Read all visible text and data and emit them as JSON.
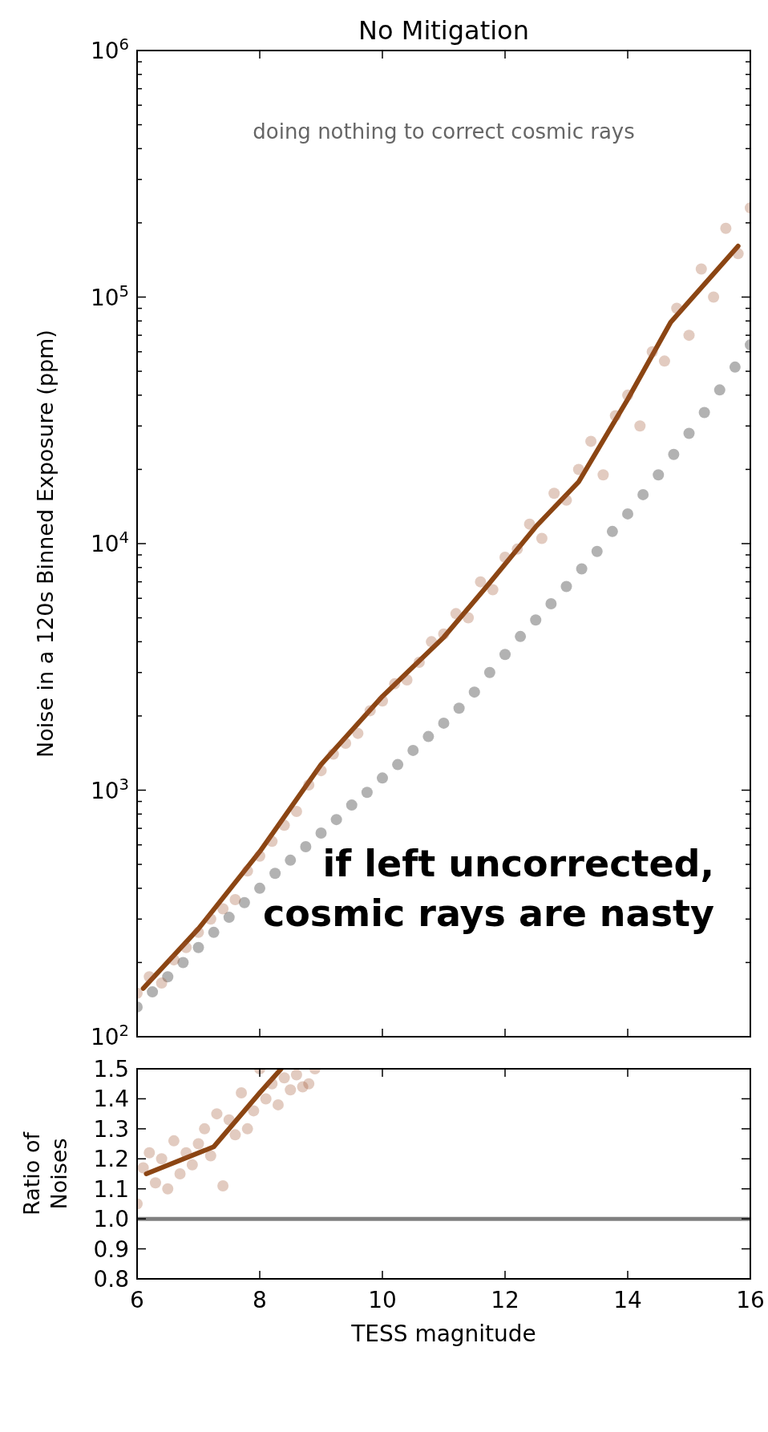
{
  "chart_data": [
    {
      "type": "scatter",
      "title": "No Mitigation",
      "ylabel": "Noise in a 120s Binned Exposure (ppm)",
      "log": true,
      "tick_labels": "y",
      "xlim": [
        6,
        16
      ],
      "xticks": [
        6,
        8,
        10,
        12,
        14,
        16
      ],
      "ylim": [
        100,
        1000000
      ],
      "yticks": [
        {
          "value": 100,
          "label": "10$^{2}$"
        },
        {
          "value": 200,
          "label": null
        },
        {
          "value": 300,
          "label": null
        },
        {
          "value": 400,
          "label": null
        },
        {
          "value": 500,
          "label": null
        },
        {
          "value": 600,
          "label": null
        },
        {
          "value": 700,
          "label": null
        },
        {
          "value": 800,
          "label": null
        },
        {
          "value": 900,
          "label": null
        },
        {
          "value": 1000,
          "label": "10$^{3}$"
        },
        {
          "value": 2000,
          "label": null
        },
        {
          "value": 3000,
          "label": null
        },
        {
          "value": 4000,
          "label": null
        },
        {
          "value": 5000,
          "label": null
        },
        {
          "value": 6000,
          "label": null
        },
        {
          "value": 7000,
          "label": null
        },
        {
          "value": 8000,
          "label": null
        },
        {
          "value": 9000,
          "label": null
        },
        {
          "value": 10000,
          "label": "10$^{4}$"
        },
        {
          "value": 20000,
          "label": null
        },
        {
          "value": 30000,
          "label": null
        },
        {
          "value": 40000,
          "label": null
        },
        {
          "value": 50000,
          "label": null
        },
        {
          "value": 60000,
          "label": null
        },
        {
          "value": 70000,
          "label": null
        },
        {
          "value": 80000,
          "label": null
        },
        {
          "value": 90000,
          "label": null
        },
        {
          "value": 100000,
          "label": "10$^{5}$"
        },
        {
          "value": 200000,
          "label": null
        },
        {
          "value": 300000,
          "label": null
        },
        {
          "value": 400000,
          "label": null
        },
        {
          "value": 500000,
          "label": null
        },
        {
          "value": 600000,
          "label": null
        },
        {
          "value": 700000,
          "label": null
        },
        {
          "value": 800000,
          "label": null
        },
        {
          "value": 900000,
          "label": null
        },
        {
          "value": 1000000,
          "label": "10$^{6}$"
        }
      ],
      "annotations": [
        "doing nothing to correct cosmic rays",
        "if left uncorrected,\ncosmic rays are nasty"
      ],
      "series": [
        {
          "color": "#000000",
          "x": [
            6,
            6.25,
            6.5,
            6.75,
            7,
            7.25,
            7.5,
            7.75,
            8,
            8.25,
            8.5,
            8.75,
            9,
            9.25,
            9.5,
            9.75,
            10,
            10.25,
            10.5,
            10.75,
            11,
            11.25,
            11.5,
            11.75,
            12,
            12.25,
            12.5,
            12.75,
            13,
            13.25,
            13.5,
            13.75,
            14,
            14.25,
            14.5,
            14.75,
            15,
            15.25,
            15.5,
            15.75,
            16
          ],
          "values": [
            132,
            152,
            175,
            200,
            230,
            265,
            305,
            350,
            400,
            460,
            520,
            590,
            670,
            760,
            870,
            980,
            1120,
            1270,
            1450,
            1650,
            1870,
            2150,
            2500,
            3000,
            3550,
            4200,
            4900,
            5700,
            6700,
            7900,
            9300,
            11200,
            13200,
            15800,
            19000,
            23000,
            28000,
            34000,
            42000,
            52000,
            64000
          ]
        },
        {
          "color": "#a0522d",
          "x": [
            6,
            6.2,
            6.4,
            6.6,
            6.8,
            7,
            7.2,
            7.4,
            7.6,
            7.8,
            8,
            8.2,
            8.4,
            8.6,
            8.8,
            9,
            9.2,
            9.4,
            9.6,
            9.8,
            10,
            10.2,
            10.4,
            10.6,
            10.8,
            11,
            11.2,
            11.4,
            11.6,
            11.8,
            12,
            12.2,
            12.4,
            12.6,
            12.8,
            13,
            13.2,
            13.4,
            13.6,
            13.8,
            14,
            14.2,
            14.4,
            14.6,
            14.8,
            15,
            15.2,
            15.4,
            15.6,
            15.8,
            16
          ],
          "values": [
            150,
            175,
            165,
            205,
            230,
            265,
            300,
            330,
            360,
            470,
            540,
            620,
            720,
            820,
            1050,
            1200,
            1400,
            1550,
            1700,
            2100,
            2300,
            2700,
            2800,
            3300,
            4000,
            4300,
            5200,
            5000,
            7000,
            6500,
            8800,
            9500,
            12000,
            10500,
            16000,
            15000,
            20000,
            26000,
            19000,
            33000,
            40000,
            30000,
            60000,
            55000,
            90000,
            70000,
            130000,
            100000,
            190000,
            150000,
            230000
          ]
        },
        {
          "type": "line",
          "color": "#8b4513",
          "x": [
            6.1,
            7,
            8,
            9,
            10,
            11,
            11.7,
            12.5,
            13.2,
            14,
            14.7,
            15.8
          ],
          "values": [
            157,
            274,
            563,
            1270,
            2400,
            4170,
            6700,
            11700,
            17800,
            38500,
            79000,
            161000
          ]
        }
      ]
    },
    {
      "type": "scatter",
      "ylabel": "Ratio of\nNoises",
      "xlabel": "TESS magnitude",
      "xlim": [
        6,
        16
      ],
      "xticks": [
        6,
        8,
        10,
        12,
        14,
        16
      ],
      "ylim": [
        0.8,
        1.5
      ],
      "yticks": [
        {
          "value": 0.8,
          "label": "0.8"
        },
        {
          "value": 0.9,
          "label": "0.9"
        },
        {
          "value": 1,
          "label": "1.0"
        },
        {
          "value": 1.1,
          "label": "1.1"
        },
        {
          "value": 1.2,
          "label": "1.2"
        },
        {
          "value": 1.3,
          "label": "1.3"
        },
        {
          "value": 1.4,
          "label": "1.4"
        },
        {
          "value": 1.5,
          "label": "1.5"
        }
      ],
      "ref_lines": [
        {
          "axis": "y",
          "value": 1,
          "color": "#808080"
        }
      ],
      "series": [
        {
          "color": "#a0522d",
          "x": [
            6,
            6.1,
            6.2,
            6.3,
            6.4,
            6.5,
            6.6,
            6.7,
            6.8,
            6.9,
            7,
            7.1,
            7.2,
            7.3,
            7.4,
            7.5,
            7.6,
            7.7,
            7.8,
            7.9,
            8,
            8.1,
            8.2,
            8.3,
            8.4,
            8.5,
            8.6,
            8.7,
            8.8,
            8.9
          ],
          "values": [
            1.05,
            1.17,
            1.22,
            1.12,
            1.2,
            1.1,
            1.26,
            1.15,
            1.22,
            1.18,
            1.25,
            1.3,
            1.21,
            1.35,
            1.11,
            1.33,
            1.28,
            1.42,
            1.3,
            1.36,
            1.5,
            1.4,
            1.45,
            1.38,
            1.47,
            1.43,
            1.48,
            1.44,
            1.45,
            1.5
          ]
        },
        {
          "type": "line",
          "color": "#8b4513",
          "x": [
            6.15,
            7.25,
            8,
            8.35
          ],
          "values": [
            1.15,
            1.24,
            1.42,
            1.5
          ]
        }
      ]
    }
  ]
}
